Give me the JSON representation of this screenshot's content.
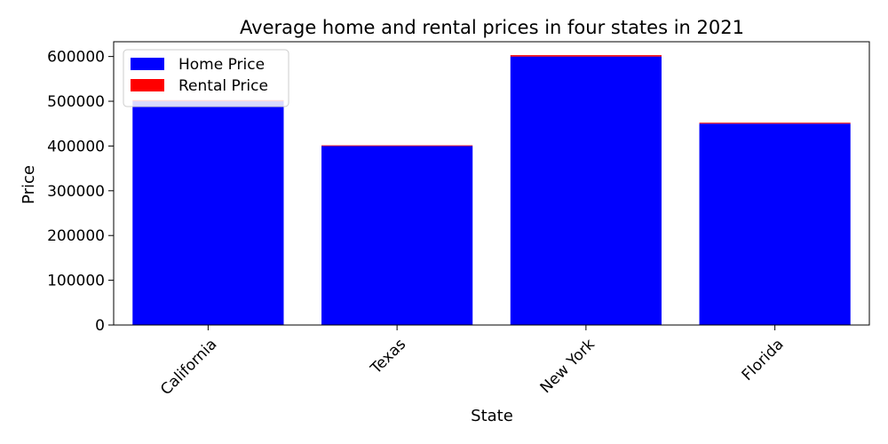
{
  "chart_data": {
    "type": "bar",
    "stacked": true,
    "title": "Average home and rental prices in four states in 2021",
    "xlabel": "State",
    "ylabel": "Price",
    "categories": [
      "California",
      "Texas",
      "New York",
      "Florida"
    ],
    "series": [
      {
        "name": "Home Price",
        "color": "#0000ff",
        "values": [
          500000,
          400000,
          600000,
          450000
        ]
      },
      {
        "name": "Rental Price",
        "color": "#ff0000",
        "values": [
          2500,
          1500,
          3000,
          2000
        ]
      }
    ],
    "ylim": [
      0,
      633000
    ],
    "yticks": [
      0,
      100000,
      200000,
      300000,
      400000,
      500000,
      600000
    ],
    "ytick_labels": [
      "0",
      "100000",
      "200000",
      "300000",
      "400000",
      "500000",
      "600000"
    ],
    "legend_position": "top-left",
    "grid": false
  }
}
